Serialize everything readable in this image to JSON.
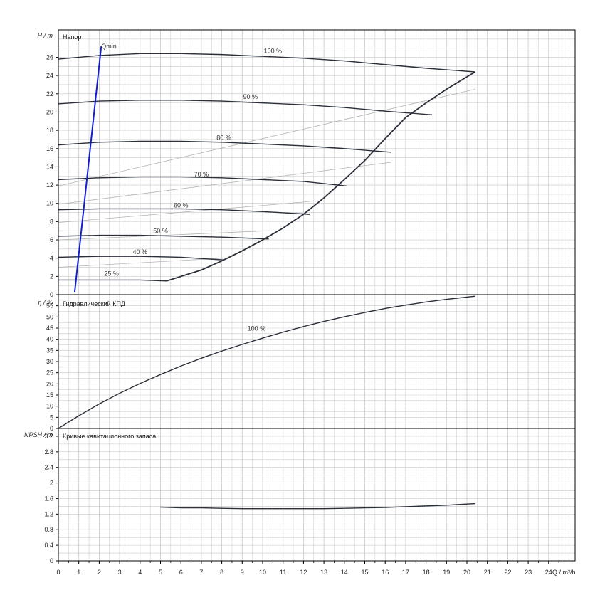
{
  "x_axis": {
    "label": "Q / m³/h",
    "ticks": [
      0,
      1,
      2,
      3,
      4,
      5,
      6,
      7,
      8,
      9,
      10,
      11,
      12,
      13,
      14,
      15,
      16,
      17,
      18,
      19,
      20,
      21,
      22,
      23,
      24
    ],
    "range": [
      0,
      25
    ]
  },
  "panels": {
    "head": {
      "title": "Напор",
      "ylabel": "H / m"
    },
    "efficiency": {
      "title": "Гидравлический КПД",
      "ylabel": "η / %"
    },
    "npsh": {
      "title": "Кривые кавитационного запаса",
      "ylabel": "NPSH / m"
    }
  },
  "colors": {
    "curve": "#2a2f3a",
    "qmin": "#1020cc",
    "grid": "#c8c8c8",
    "aux": "#b4b4b4",
    "axis": "#000000"
  },
  "chart_data": [
    {
      "type": "line",
      "title": "Напор",
      "ylabel": "H / m",
      "xlabel": "Q / m³/h",
      "ylim": [
        0,
        29
      ],
      "yticks": [
        0,
        2,
        4,
        6,
        8,
        10,
        12,
        14,
        16,
        18,
        20,
        22,
        24,
        26
      ],
      "grid": true,
      "series": [
        {
          "name": "100 %",
          "label_at": [
            10.5,
            26.3
          ],
          "x": [
            0,
            2,
            4,
            6,
            8,
            10,
            12,
            14,
            16,
            18,
            20.4
          ],
          "y": [
            25.8,
            26.2,
            26.4,
            26.4,
            26.3,
            26.1,
            25.9,
            25.6,
            25.2,
            24.8,
            24.4
          ]
        },
        {
          "name": "90 %",
          "label_at": [
            9.4,
            21.3
          ],
          "x": [
            0,
            2,
            4,
            6,
            8,
            10,
            12,
            14,
            16,
            18.3
          ],
          "y": [
            20.9,
            21.2,
            21.3,
            21.3,
            21.2,
            21.0,
            20.8,
            20.5,
            20.1,
            19.7
          ]
        },
        {
          "name": "80 %",
          "label_at": [
            8.1,
            16.8
          ],
          "x": [
            0,
            2,
            4,
            6,
            8,
            10,
            12,
            14,
            16.3
          ],
          "y": [
            16.4,
            16.7,
            16.8,
            16.8,
            16.7,
            16.5,
            16.3,
            16.0,
            15.6
          ]
        },
        {
          "name": "70 %",
          "label_at": [
            7.0,
            12.8
          ],
          "x": [
            0,
            2,
            4,
            6,
            8,
            10,
            12,
            14.1
          ],
          "y": [
            12.6,
            12.8,
            12.9,
            12.9,
            12.8,
            12.6,
            12.4,
            11.9
          ]
        },
        {
          "name": "60 %",
          "label_at": [
            6.0,
            9.4
          ],
          "x": [
            0,
            2,
            4,
            6,
            8,
            10,
            12.3
          ],
          "y": [
            9.3,
            9.4,
            9.4,
            9.4,
            9.3,
            9.1,
            8.8
          ]
        },
        {
          "name": "50 %",
          "label_at": [
            5.0,
            6.6
          ],
          "x": [
            0,
            2,
            4,
            6,
            8,
            10.3
          ],
          "y": [
            6.4,
            6.5,
            6.5,
            6.4,
            6.3,
            6.1
          ]
        },
        {
          "name": "40 %",
          "label_at": [
            4.0,
            4.3
          ],
          "x": [
            0,
            2,
            4,
            6,
            8.1
          ],
          "y": [
            4.1,
            4.2,
            4.2,
            4.1,
            3.8
          ]
        },
        {
          "name": "25 %",
          "label_at": [
            2.6,
            1.9
          ],
          "x": [
            0,
            2,
            4,
            5.3
          ],
          "y": [
            1.6,
            1.6,
            1.6,
            1.5
          ]
        },
        {
          "name": "Qmin",
          "label_at": [
            2.1,
            26.8
          ],
          "x": [
            0.8,
            2.1
          ],
          "y": [
            0.3,
            27.2
          ]
        }
      ],
      "boundary": {
        "x": [
          5.3,
          7,
          8,
          9,
          10,
          11,
          12,
          13,
          14,
          15,
          16,
          17,
          18,
          19,
          20.4
        ],
        "y": [
          1.5,
          2.7,
          3.7,
          4.8,
          6.0,
          7.3,
          8.8,
          10.6,
          12.6,
          14.7,
          17.1,
          19.4,
          21.0,
          22.5,
          24.4
        ]
      },
      "aux_lines": [
        {
          "x": [
            0,
            20.4
          ],
          "y": [
            11.9,
            22.5
          ]
        },
        {
          "x": [
            0,
            16.3
          ],
          "y": [
            9.9,
            14.5
          ]
        },
        {
          "x": [
            0,
            12.3
          ],
          "y": [
            7.9,
            10.2
          ]
        },
        {
          "x": [
            0,
            10.3
          ],
          "y": [
            6.0,
            7.0
          ]
        },
        {
          "x": [
            0,
            8.1
          ],
          "y": [
            3.0,
            4.0
          ]
        }
      ]
    },
    {
      "type": "line",
      "title": "Гидравлический КПД",
      "ylabel": "η / %",
      "xlabel": "Q / m³/h",
      "ylim": [
        0,
        60
      ],
      "yticks": [
        0,
        5,
        10,
        15,
        20,
        25,
        30,
        35,
        40,
        45,
        50,
        55
      ],
      "grid": true,
      "series": [
        {
          "name": "100 %",
          "label_at": [
            9.7,
            43.3
          ],
          "x": [
            0,
            1,
            2,
            3,
            4,
            5,
            6,
            7,
            8,
            9,
            10,
            11,
            12,
            13,
            14,
            15,
            16,
            17,
            18,
            19,
            20.4
          ],
          "y": [
            0,
            5.7,
            11,
            15.8,
            20.2,
            24.2,
            28.0,
            31.5,
            34.7,
            37.7,
            40.5,
            43.2,
            45.7,
            48.0,
            50.1,
            52.0,
            53.8,
            55.3,
            56.7,
            57.9,
            59.3
          ]
        }
      ]
    },
    {
      "type": "line",
      "title": "Кривые кавитационного запаса",
      "ylabel": "NPSH / m",
      "xlabel": "Q / m³/h",
      "ylim": [
        0,
        3.4
      ],
      "yticks": [
        0,
        0.4,
        0.8,
        1.2,
        1.6,
        2,
        2.4,
        2.8,
        3.2
      ],
      "grid": true,
      "series": [
        {
          "x": [
            5,
            6,
            7,
            8,
            9,
            10,
            11,
            12,
            13,
            14,
            15,
            16,
            17,
            18,
            19,
            20.4
          ],
          "y": [
            1.38,
            1.36,
            1.36,
            1.35,
            1.34,
            1.34,
            1.34,
            1.34,
            1.34,
            1.35,
            1.36,
            1.37,
            1.39,
            1.41,
            1.43,
            1.47
          ]
        }
      ]
    }
  ]
}
